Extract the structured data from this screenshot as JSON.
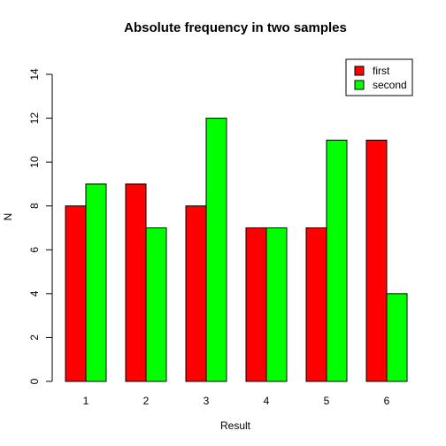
{
  "chart_data": {
    "type": "bar",
    "title": "Absolute frequency in two samples",
    "xlabel": "Result",
    "ylabel": "N",
    "categories": [
      "1",
      "2",
      "3",
      "4",
      "5",
      "6"
    ],
    "series": [
      {
        "name": "first",
        "color": "#ff0000",
        "values": [
          8,
          9,
          8,
          7,
          7,
          11
        ]
      },
      {
        "name": "second",
        "color": "#00ff00",
        "values": [
          9,
          7,
          12,
          7,
          11,
          4
        ]
      }
    ],
    "ylim": [
      0,
      14
    ],
    "yticks": [
      "0",
      "2",
      "4",
      "6",
      "8",
      "10",
      "12",
      "14"
    ],
    "grid": false,
    "legend_position": "top-right"
  }
}
